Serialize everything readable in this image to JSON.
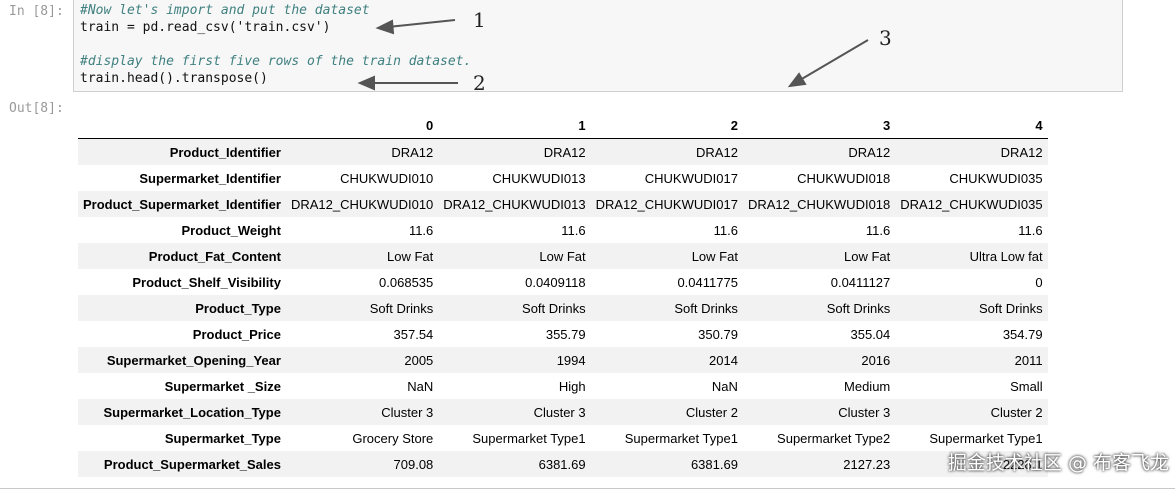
{
  "prompts": {
    "in": "In [8]:",
    "out": "Out[8]:"
  },
  "code": [
    {
      "text": "#Now let's import and put the dataset",
      "kind": "comment"
    },
    {
      "text": "train = pd.read_csv('train.csv')",
      "kind": "code"
    },
    {
      "text": "#display the first five rows of the train dataset.",
      "kind": "comment"
    },
    {
      "text": "train.head().transpose()",
      "kind": "code"
    }
  ],
  "annotations": [
    "1",
    "2",
    "3"
  ],
  "table": {
    "columns": [
      "",
      "0",
      "1",
      "2",
      "3",
      "4"
    ],
    "rows": [
      [
        "Product_Identifier",
        "DRA12",
        "DRA12",
        "DRA12",
        "DRA12",
        "DRA12"
      ],
      [
        "Supermarket_Identifier",
        "CHUKWUDI010",
        "CHUKWUDI013",
        "CHUKWUDI017",
        "CHUKWUDI018",
        "CHUKWUDI035"
      ],
      [
        "Product_Supermarket_Identifier",
        "DRA12_CHUKWUDI010",
        "DRA12_CHUKWUDI013",
        "DRA12_CHUKWUDI017",
        "DRA12_CHUKWUDI018",
        "DRA12_CHUKWUDI035"
      ],
      [
        "Product_Weight",
        "11.6",
        "11.6",
        "11.6",
        "11.6",
        "11.6"
      ],
      [
        "Product_Fat_Content",
        "Low Fat",
        "Low Fat",
        "Low Fat",
        "Low Fat",
        "Ultra Low fat"
      ],
      [
        "Product_Shelf_Visibility",
        "0.068535",
        "0.0409118",
        "0.0411775",
        "0.0411127",
        "0"
      ],
      [
        "Product_Type",
        "Soft Drinks",
        "Soft Drinks",
        "Soft Drinks",
        "Soft Drinks",
        "Soft Drinks"
      ],
      [
        "Product_Price",
        "357.54",
        "355.79",
        "350.79",
        "355.04",
        "354.79"
      ],
      [
        "Supermarket_Opening_Year",
        "2005",
        "1994",
        "2014",
        "2016",
        "2011"
      ],
      [
        "Supermarket _Size",
        "NaN",
        "High",
        "NaN",
        "Medium",
        "Small"
      ],
      [
        "Supermarket_Location_Type",
        "Cluster 3",
        "Cluster 3",
        "Cluster 2",
        "Cluster 3",
        "Cluster 2"
      ],
      [
        "Supermarket_Type",
        "Grocery Store",
        "Supermarket Type1",
        "Supermarket Type1",
        "Supermarket Type2",
        "Supermarket Type1"
      ],
      [
        "Product_Supermarket_Sales",
        "709.08",
        "6381.69",
        "6381.69",
        "2127.23",
        "2228.1"
      ]
    ]
  },
  "watermark": "掘金技术社区 @ 布客飞龙",
  "colors": {
    "comment": "#408080",
    "cell_bg": "#f7f7f7",
    "row_stripe": "#f2f2f2"
  }
}
